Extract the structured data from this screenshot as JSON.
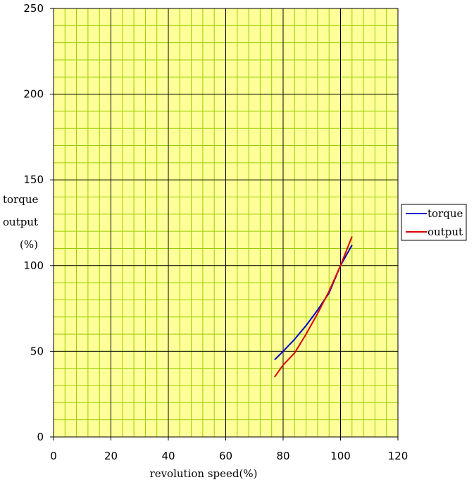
{
  "chart_data": {
    "type": "line",
    "title": "",
    "xlabel": "revolution speed(%)",
    "ylabel_lines": [
      "torque",
      "output",
      "(%)"
    ],
    "xlim": [
      0,
      120
    ],
    "ylim": [
      0,
      250
    ],
    "x_ticks": [
      0,
      20,
      40,
      60,
      80,
      100,
      120
    ],
    "y_ticks": [
      0,
      50,
      100,
      150,
      200,
      250
    ],
    "x_minor_step": 4,
    "y_minor_step": 10,
    "grid": true,
    "legend_position": "right",
    "plot_background": "#ffff99",
    "series": [
      {
        "name": "torque",
        "color": "#0000cc",
        "x": [
          77,
          80,
          84,
          88,
          92,
          96,
          100,
          104
        ],
        "y": [
          45,
          50,
          57,
          65,
          74,
          84,
          100,
          112
        ]
      },
      {
        "name": "output",
        "color": "#dd0000",
        "x": [
          77,
          80,
          84,
          88,
          92,
          96,
          100,
          104
        ],
        "y": [
          35,
          42,
          49,
          60,
          72,
          85,
          100,
          117
        ]
      }
    ]
  }
}
